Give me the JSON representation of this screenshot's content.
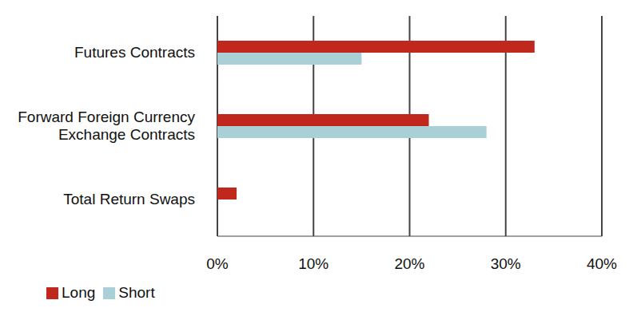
{
  "chart_data": {
    "type": "bar",
    "orientation": "horizontal",
    "categories": [
      "Futures Contracts",
      "Forward Foreign Currency Exchange Contracts",
      "Total Return Swaps"
    ],
    "series": [
      {
        "name": "Long",
        "color": "#c0281e",
        "values": [
          33,
          22,
          2
        ]
      },
      {
        "name": "Short",
        "color": "#a8d0d6",
        "values": [
          15,
          28,
          0
        ]
      }
    ],
    "xlim": [
      0,
      40
    ],
    "xticks": [
      {
        "value": 0,
        "label": "0%"
      },
      {
        "value": 10,
        "label": "10%"
      },
      {
        "value": 20,
        "label": "20%"
      },
      {
        "value": 30,
        "label": "30%"
      },
      {
        "value": 40,
        "label": "40%"
      }
    ],
    "grid": true,
    "legend": "bottom-left"
  }
}
